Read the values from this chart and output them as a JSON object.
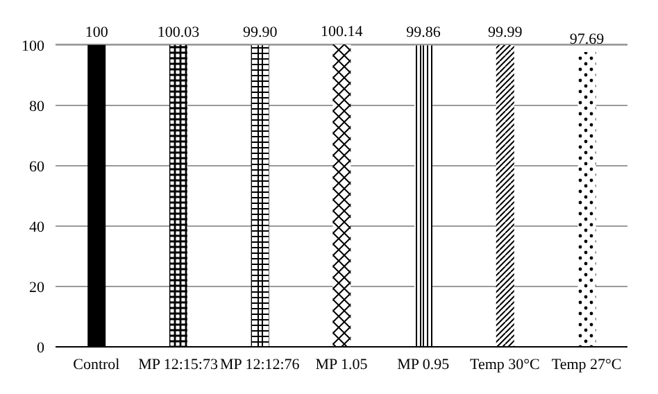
{
  "chart_data": {
    "type": "bar",
    "categories": [
      "Control",
      "MP 12:15:73",
      "MP 12:12:76",
      "MP 1.05",
      "MP 0.95",
      "Temp 30°C",
      "Temp 27°C"
    ],
    "values": [
      100,
      100.03,
      99.9,
      100.14,
      99.86,
      99.99,
      97.69
    ],
    "value_labels": [
      "100",
      "100.03",
      "99.90",
      "100.14",
      "99.86",
      "99.99",
      "97.69"
    ],
    "color": "#000000",
    "ylim": [
      0,
      100.2
    ],
    "yticks": [
      0,
      20,
      40,
      60,
      80,
      100
    ],
    "grid": "y"
  }
}
